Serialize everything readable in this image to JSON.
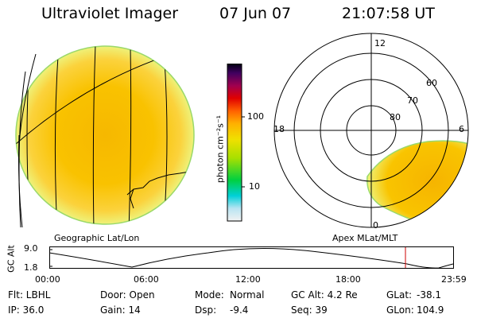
{
  "header": {
    "title": "Ultraviolet Imager",
    "date": "07 Jun 07",
    "time": "21:07:58 UT"
  },
  "colorbar": {
    "unit_label": "photon cm⁻²s⁻¹",
    "ticks": [
      "100",
      "10"
    ]
  },
  "left_panel": {
    "caption": "Geographic Lat/Lon"
  },
  "right_panel": {
    "caption": "Apex MLat/MLT",
    "mlt_labels": {
      "top": "12",
      "left": "18",
      "right": "6",
      "bottom": "0"
    },
    "lat_labels": [
      "60",
      "70",
      "80"
    ]
  },
  "altitude_strip": {
    "ylabel": "GC Alt",
    "yticks": [
      "9.0",
      "1.8"
    ],
    "xticks": [
      "00:00",
      "06:00",
      "12:00",
      "18:00",
      "23:59"
    ]
  },
  "info": {
    "filter": "Flt: LBHL",
    "ip": "IP: 36.0",
    "door": "Door: Open",
    "gain": "Gain: 14",
    "mode_label": "Mode:",
    "mode_value": "Normal",
    "dsp_label": "Dsp:",
    "dsp_value": "-9.4",
    "gc_alt": "GC Alt: 4.2 Re",
    "seq": "Seq: 39",
    "glat_label": "GLat:",
    "glat_value": "-38.1",
    "glon_label": "GLon:",
    "glon_value": "104.9"
  }
}
